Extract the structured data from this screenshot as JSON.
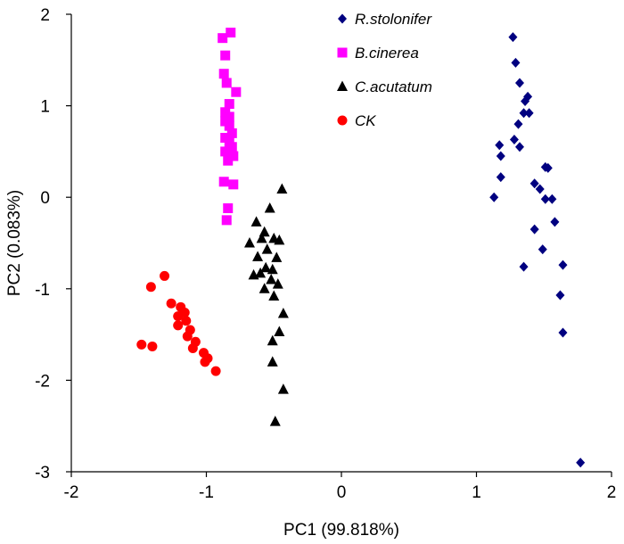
{
  "chart_data": {
    "type": "scatter",
    "title": "",
    "xlabel": "PC1 (99.818%)",
    "ylabel": "PC2 (0.083%)",
    "xlim": [
      -2,
      2
    ],
    "ylim": [
      -3,
      2
    ],
    "xticks": [
      -2,
      -1,
      0,
      1,
      2
    ],
    "yticks": [
      -3,
      -2,
      -1,
      0,
      1,
      2
    ],
    "xtick_labels": [
      "-2",
      "-1",
      "0",
      "1",
      "2"
    ],
    "ytick_labels": [
      "-3",
      "-2",
      "-1",
      "0",
      "1",
      "2"
    ],
    "grid": false,
    "legend_position": "top-right",
    "series": [
      {
        "name": "R.stolonifer",
        "italic": true,
        "marker": "diamond",
        "color": "#000080",
        "points": [
          [
            1.27,
            1.75
          ],
          [
            1.29,
            1.47
          ],
          [
            1.32,
            1.25
          ],
          [
            1.36,
            1.05
          ],
          [
            1.38,
            1.1
          ],
          [
            1.35,
            0.92
          ],
          [
            1.39,
            0.92
          ],
          [
            1.31,
            0.8
          ],
          [
            1.28,
            0.63
          ],
          [
            1.32,
            0.55
          ],
          [
            1.17,
            0.57
          ],
          [
            1.18,
            0.45
          ],
          [
            1.18,
            0.22
          ],
          [
            1.13,
            0.0
          ],
          [
            1.51,
            0.33
          ],
          [
            1.53,
            0.32
          ],
          [
            1.43,
            0.15
          ],
          [
            1.47,
            0.09
          ],
          [
            1.51,
            -0.02
          ],
          [
            1.56,
            -0.02
          ],
          [
            1.58,
            -0.27
          ],
          [
            1.43,
            -0.35
          ],
          [
            1.49,
            -0.57
          ],
          [
            1.35,
            -0.76
          ],
          [
            1.64,
            -0.74
          ],
          [
            1.62,
            -1.07
          ],
          [
            1.64,
            -1.48
          ],
          [
            1.77,
            -2.9
          ]
        ]
      },
      {
        "name": "B.cinerea",
        "italic": true,
        "marker": "square",
        "color": "#ff00ff",
        "points": [
          [
            -0.82,
            1.8
          ],
          [
            -0.88,
            1.74
          ],
          [
            -0.86,
            1.55
          ],
          [
            -0.87,
            1.35
          ],
          [
            -0.85,
            1.25
          ],
          [
            -0.78,
            1.15
          ],
          [
            -0.83,
            1.02
          ],
          [
            -0.86,
            0.93
          ],
          [
            -0.83,
            0.88
          ],
          [
            -0.86,
            0.83
          ],
          [
            -0.83,
            0.78
          ],
          [
            -0.81,
            0.7
          ],
          [
            -0.86,
            0.65
          ],
          [
            -0.83,
            0.6
          ],
          [
            -0.81,
            0.55
          ],
          [
            -0.86,
            0.5
          ],
          [
            -0.8,
            0.45
          ],
          [
            -0.84,
            0.4
          ],
          [
            -0.87,
            0.17
          ],
          [
            -0.8,
            0.14
          ],
          [
            -0.84,
            -0.12
          ],
          [
            -0.85,
            -0.25
          ]
        ]
      },
      {
        "name": "C.acutatum",
        "italic": true,
        "marker": "triangle",
        "color": "#000000",
        "points": [
          [
            -0.44,
            0.09
          ],
          [
            -0.53,
            -0.12
          ],
          [
            -0.63,
            -0.27
          ],
          [
            -0.57,
            -0.38
          ],
          [
            -0.68,
            -0.5
          ],
          [
            -0.59,
            -0.45
          ],
          [
            -0.5,
            -0.45
          ],
          [
            -0.46,
            -0.47
          ],
          [
            -0.55,
            -0.57
          ],
          [
            -0.62,
            -0.65
          ],
          [
            -0.48,
            -0.66
          ],
          [
            -0.56,
            -0.77
          ],
          [
            -0.51,
            -0.79
          ],
          [
            -0.6,
            -0.83
          ],
          [
            -0.65,
            -0.85
          ],
          [
            -0.52,
            -0.9
          ],
          [
            -0.47,
            -0.95
          ],
          [
            -0.57,
            -1.0
          ],
          [
            -0.5,
            -1.08
          ],
          [
            -0.43,
            -1.27
          ],
          [
            -0.46,
            -1.47
          ],
          [
            -0.51,
            -1.57
          ],
          [
            -0.51,
            -1.8
          ],
          [
            -0.43,
            -2.1
          ],
          [
            -0.49,
            -2.45
          ]
        ]
      },
      {
        "name": "CK",
        "italic": true,
        "marker": "circle",
        "color": "#ff0000",
        "points": [
          [
            -1.31,
            -0.86
          ],
          [
            -1.41,
            -0.98
          ],
          [
            -1.26,
            -1.16
          ],
          [
            -1.19,
            -1.2
          ],
          [
            -1.16,
            -1.26
          ],
          [
            -1.21,
            -1.3
          ],
          [
            -1.15,
            -1.35
          ],
          [
            -1.21,
            -1.4
          ],
          [
            -1.12,
            -1.45
          ],
          [
            -1.14,
            -1.52
          ],
          [
            -1.08,
            -1.58
          ],
          [
            -1.1,
            -1.65
          ],
          [
            -1.02,
            -1.7
          ],
          [
            -0.99,
            -1.76
          ],
          [
            -1.01,
            -1.8
          ],
          [
            -0.93,
            -1.9
          ],
          [
            -1.48,
            -1.61
          ],
          [
            -1.4,
            -1.63
          ]
        ]
      }
    ]
  }
}
